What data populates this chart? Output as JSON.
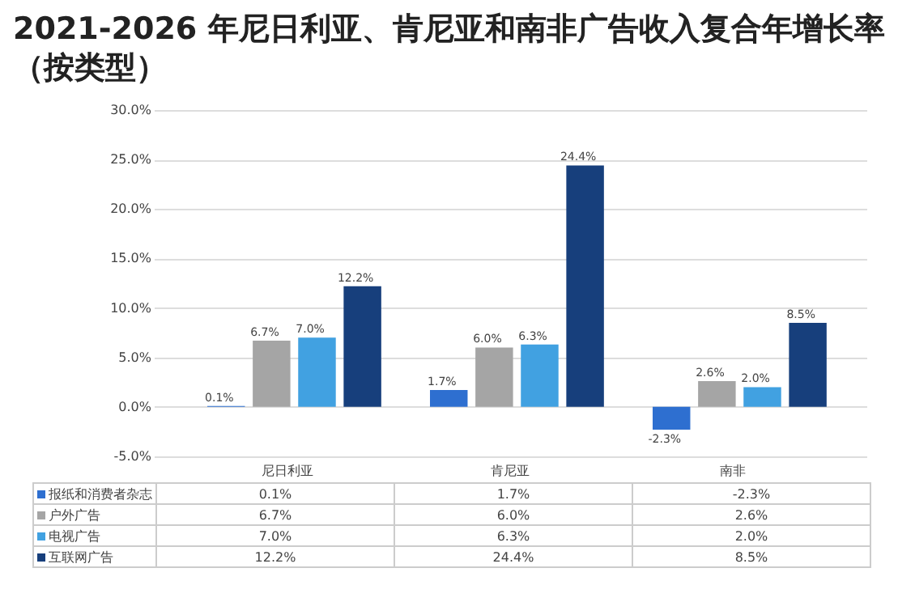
{
  "chart_data": {
    "type": "bar",
    "title": "2021-2026 年尼日利亚、肯尼亚和南非广告收入复合年增长率（按类型）",
    "categories": [
      "尼日利亚",
      "肯尼亚",
      "南非"
    ],
    "series": [
      {
        "name": "报纸和消费者杂志",
        "color": "#2e6fd0",
        "values": [
          0.1,
          1.7,
          -2.3
        ],
        "value_labels": [
          "0.1%",
          "1.7%",
          "-2.3%"
        ]
      },
      {
        "name": "户外广告",
        "color": "#a5a5a5",
        "values": [
          6.7,
          6.0,
          2.6
        ],
        "value_labels": [
          "6.7%",
          "6.0%",
          "2.6%"
        ]
      },
      {
        "name": "电视广告",
        "color": "#41a1e1",
        "values": [
          7.0,
          6.3,
          2.0
        ],
        "value_labels": [
          "7.0%",
          "6.3%",
          "2.0%"
        ]
      },
      {
        "name": "互联网广告",
        "color": "#173f7c",
        "values": [
          12.2,
          24.4,
          8.5
        ],
        "value_labels": [
          "12.2%",
          "24.4%",
          "8.5%"
        ]
      }
    ],
    "ylim": [
      -5,
      30
    ],
    "yticks": [
      {
        "value": -5,
        "label": "-5.0%"
      },
      {
        "value": 0,
        "label": "0.0%"
      },
      {
        "value": 5,
        "label": "5.0%"
      },
      {
        "value": 10,
        "label": "10.0%"
      },
      {
        "value": 15,
        "label": "15.0%"
      },
      {
        "value": 20,
        "label": "20.0%"
      },
      {
        "value": 25,
        "label": "25.0%"
      },
      {
        "value": 30,
        "label": "30.0%"
      }
    ],
    "grid": "y",
    "legend": "bottom"
  }
}
